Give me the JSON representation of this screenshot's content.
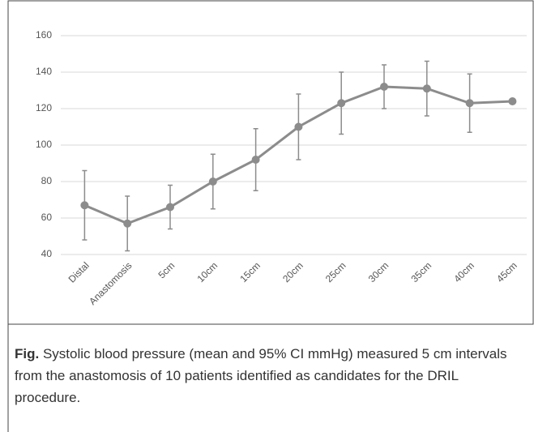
{
  "chart_data": {
    "type": "line",
    "categories": [
      "Distal",
      "Anastomosis",
      "5cm",
      "10cm",
      "15cm",
      "20cm",
      "25cm",
      "30cm",
      "35cm",
      "40cm",
      "45cm"
    ],
    "series": [
      {
        "color": "#8c8c8c",
        "values": [
          67,
          57,
          66,
          80,
          92,
          110,
          123,
          132,
          131,
          123,
          124
        ],
        "errors": [
          19,
          15,
          12,
          15,
          17,
          18,
          17,
          12,
          15,
          16,
          1
        ]
      }
    ],
    "ylim": [
      40,
      160
    ],
    "yticks": [
      40,
      60,
      80,
      100,
      120,
      140,
      160
    ],
    "grid": true,
    "caption_label": "Fig.",
    "caption": "Systolic blood pressure (mean and 95% CI mmHg) measured 5 cm intervals from the anastomosis of 10 patients identified as candidates for the DRIL procedure."
  }
}
